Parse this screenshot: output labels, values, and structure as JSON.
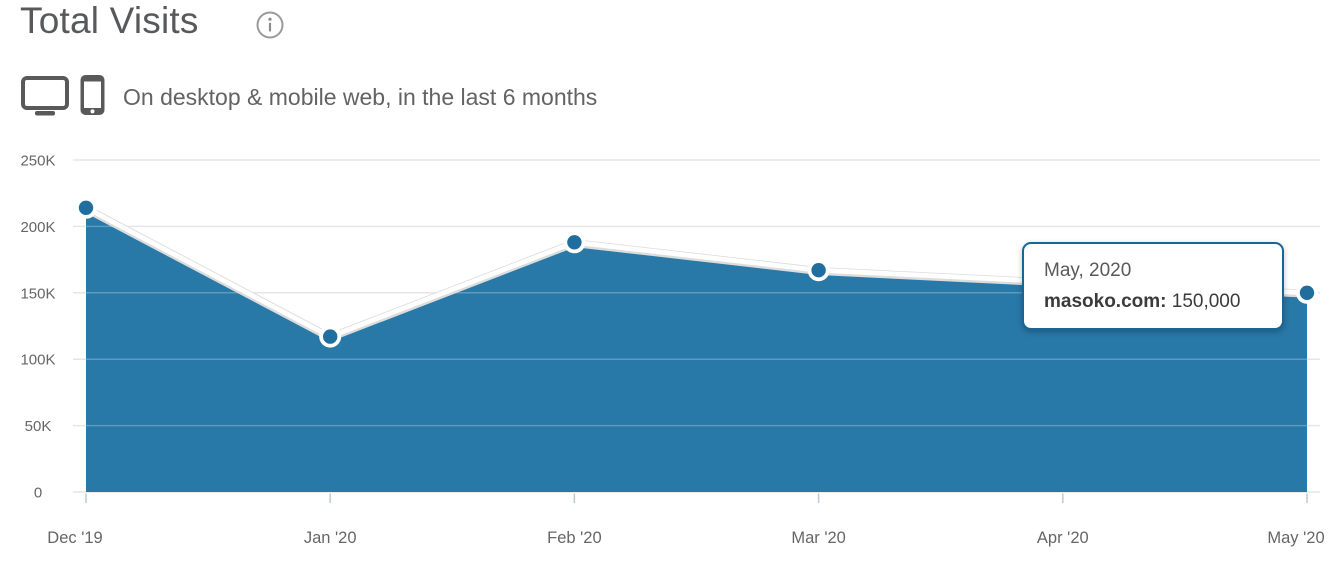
{
  "header": {
    "title": "Total Visits",
    "subtitle": "On desktop & mobile web, in the last 6 months"
  },
  "icons": {
    "info": "info-circle-icon",
    "desktop": "desktop-monitor-icon",
    "mobile": "smartphone-icon"
  },
  "tooltip": {
    "title": "May, 2020",
    "site_label": "masoko.com:",
    "value": "150,000"
  },
  "colors": {
    "area_fill": "#2878a8",
    "marker": "#1f6e9e",
    "line": "#ffffff",
    "line_shadow": "#dcdcdc",
    "tooltip_border": "#1b6493",
    "gridline": "#e6e6e6",
    "grid_on_fill": "rgba(255,255,255,0.25)",
    "tick": "#b9cbdb",
    "axis_label": "#666666",
    "title_text": "#58595b",
    "subtitle_text": "#636363",
    "icon_gray": "#595959",
    "info_gray": "#999999"
  },
  "chart_data": {
    "type": "area",
    "title": "Total Visits",
    "subtitle": "On desktop & mobile web, in the last 6 months",
    "categories": [
      "Dec '19",
      "Jan '20",
      "Feb '20",
      "Mar '20",
      "Apr '20",
      "May '20"
    ],
    "series": [
      {
        "name": "masoko.com",
        "values": [
          214000,
          117000,
          188000,
          167000,
          158000,
          150000
        ]
      }
    ],
    "xlabel": "",
    "ylabel": "",
    "ylim": [
      0,
      250000
    ],
    "y_ticks": [
      {
        "value": 0,
        "label": "0"
      },
      {
        "value": 50000,
        "label": "50K"
      },
      {
        "value": 100000,
        "label": "100K"
      },
      {
        "value": 150000,
        "label": "150K"
      },
      {
        "value": 200000,
        "label": "200K"
      },
      {
        "value": 250000,
        "label": "250K"
      }
    ],
    "grid": true,
    "legend": false,
    "highlighted_point": {
      "category": "May '20",
      "series": "masoko.com",
      "value": 150000,
      "tooltip": "May, 2020 masoko.com: 150,000"
    }
  }
}
